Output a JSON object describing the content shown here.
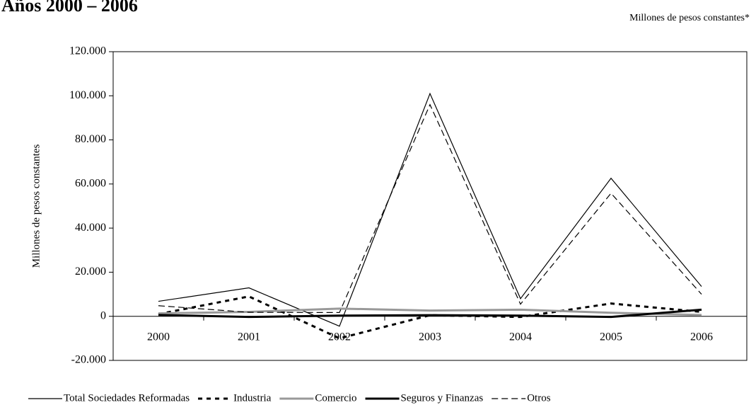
{
  "chart_data": {
    "type": "line",
    "title": "Años 2000 – 2006",
    "subtitle": "Millones de pesos constantes*",
    "y_label": "Millones de pesos constantes",
    "categories": [
      "2000",
      "2001",
      "2002",
      "2003",
      "2004",
      "2005",
      "2006"
    ],
    "series": [
      {
        "name": "Total Sociedades Reformadas",
        "color": "#000000",
        "values": [
          6800,
          12900,
          -4500,
          101000,
          8000,
          62600,
          13500
        ]
      },
      {
        "name": "Industria",
        "color": "#000000",
        "values": [
          1000,
          9000,
          -10000,
          500,
          -300,
          5800,
          2000
        ]
      },
      {
        "name": "Comercio",
        "color": "#999999",
        "values": [
          1300,
          2000,
          3500,
          2600,
          3000,
          1600,
          600
        ]
      },
      {
        "name": "Seguros y Finanzas",
        "color": "#000000",
        "values": [
          600,
          -300,
          300,
          500,
          300,
          -300,
          3000
        ]
      },
      {
        "name": "Otros",
        "color": "#000000",
        "values": [
          4800,
          1800,
          1700,
          96000,
          5500,
          55800,
          10000
        ]
      }
    ],
    "ylim": [
      -20000,
      120000
    ],
    "yticks": [
      {
        "value": -20000,
        "label": "-20.000"
      },
      0,
      {
        "value": 20000,
        "label": "20.000"
      },
      {
        "value": 40000,
        "label": "40.000"
      },
      {
        "value": 60000,
        "label": "60.000"
      },
      {
        "value": 80000,
        "label": "80.000"
      },
      {
        "value": 100000,
        "label": "100.000"
      },
      {
        "value": 120000,
        "label": "120.000"
      }
    ],
    "grid": false,
    "legend": "bottom"
  }
}
